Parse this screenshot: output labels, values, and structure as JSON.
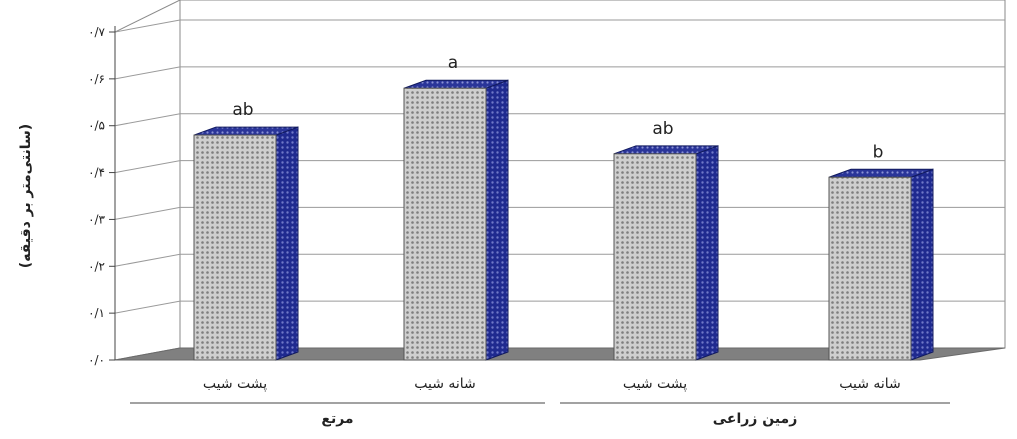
{
  "chart_data": {
    "type": "bar",
    "ylabel": "(سانتی‌متر بر دقیقه)",
    "ylim": [
      0,
      0.7
    ],
    "yticks": [
      "۰/۰",
      "۰/۱",
      "۰/۲",
      "۰/۳",
      "۰/۴",
      "۰/۵",
      "۰/۶",
      "۰/۷"
    ],
    "grid": true,
    "legend": "none",
    "bars": [
      {
        "category": "پشت شیب",
        "group": "مرتع",
        "value": 0.48,
        "letter": "ab"
      },
      {
        "category": "شانه شیب",
        "group": "مرتع",
        "value": 0.58,
        "letter": "a"
      },
      {
        "category": "پشت شیب",
        "group": "زمین زراعی",
        "value": 0.44,
        "letter": "ab"
      },
      {
        "category": "شانه شیب",
        "group": "زمین زراعی",
        "value": 0.39,
        "letter": "b"
      }
    ],
    "groups": [
      "مرتع",
      "زمین زراعی"
    ]
  },
  "colors": {
    "bar_front": "#c8c8c8",
    "bar_side": "#1f2a8f",
    "floor": "#808080",
    "grid": "#9a9a9a"
  }
}
